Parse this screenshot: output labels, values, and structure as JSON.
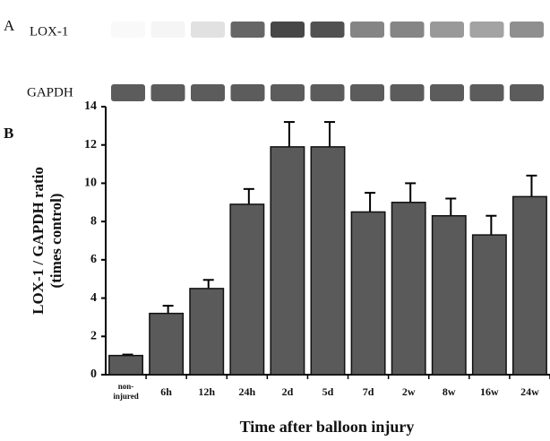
{
  "panel_a": {
    "label": "A",
    "rows": [
      "LOX-1",
      "GAPDH"
    ]
  },
  "chart_data": {
    "type": "bar",
    "panel_label": "B",
    "ylabel": [
      "LOX-1 / GAPDH ratio",
      "(times control)"
    ],
    "xlabel": "Time after balloon injury",
    "categories": [
      "non-injured",
      "6h",
      "12h",
      "24h",
      "2d",
      "5d",
      "7d",
      "2w",
      "8w",
      "16w",
      "24w"
    ],
    "values": [
      1.0,
      3.2,
      4.5,
      8.9,
      11.9,
      11.9,
      8.5,
      9.0,
      8.3,
      7.3,
      9.3
    ],
    "errors": [
      0.05,
      0.4,
      0.45,
      0.8,
      1.3,
      1.3,
      1.0,
      1.0,
      0.9,
      1.0,
      1.1
    ],
    "color": "#5a5a5a",
    "ylim": [
      0,
      14
    ],
    "yticks": [
      0,
      2,
      4,
      6,
      8,
      10,
      12,
      14
    ]
  }
}
